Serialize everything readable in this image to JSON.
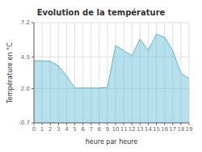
{
  "chart_data": {
    "type": "area",
    "title": "Evolution de la température",
    "xlabel": "heure par heure",
    "ylabel": "Température en °C",
    "x": [
      0,
      1,
      2,
      3,
      4,
      5,
      6,
      7,
      8,
      9,
      10,
      11,
      12,
      13,
      14,
      15,
      16,
      17,
      18,
      19
    ],
    "values": [
      4.2,
      4.2,
      4.15,
      3.8,
      3.0,
      2.05,
      2.05,
      2.05,
      2.05,
      2.1,
      5.4,
      5.0,
      4.6,
      5.9,
      5.0,
      6.3,
      6.05,
      5.0,
      3.2,
      2.8
    ],
    "color": "#5bbad4",
    "xlim": [
      0,
      19
    ],
    "ylim": [
      -0.7,
      7.2
    ],
    "xticks": [
      0,
      1,
      2,
      3,
      4,
      5,
      6,
      7,
      8,
      9,
      10,
      11,
      12,
      13,
      14,
      15,
      16,
      17,
      18,
      19
    ],
    "yticks": [
      -0.7,
      {
        "value": 2.0,
        "label": "2.0"
      },
      4.5,
      7.2
    ],
    "grid": true
  }
}
